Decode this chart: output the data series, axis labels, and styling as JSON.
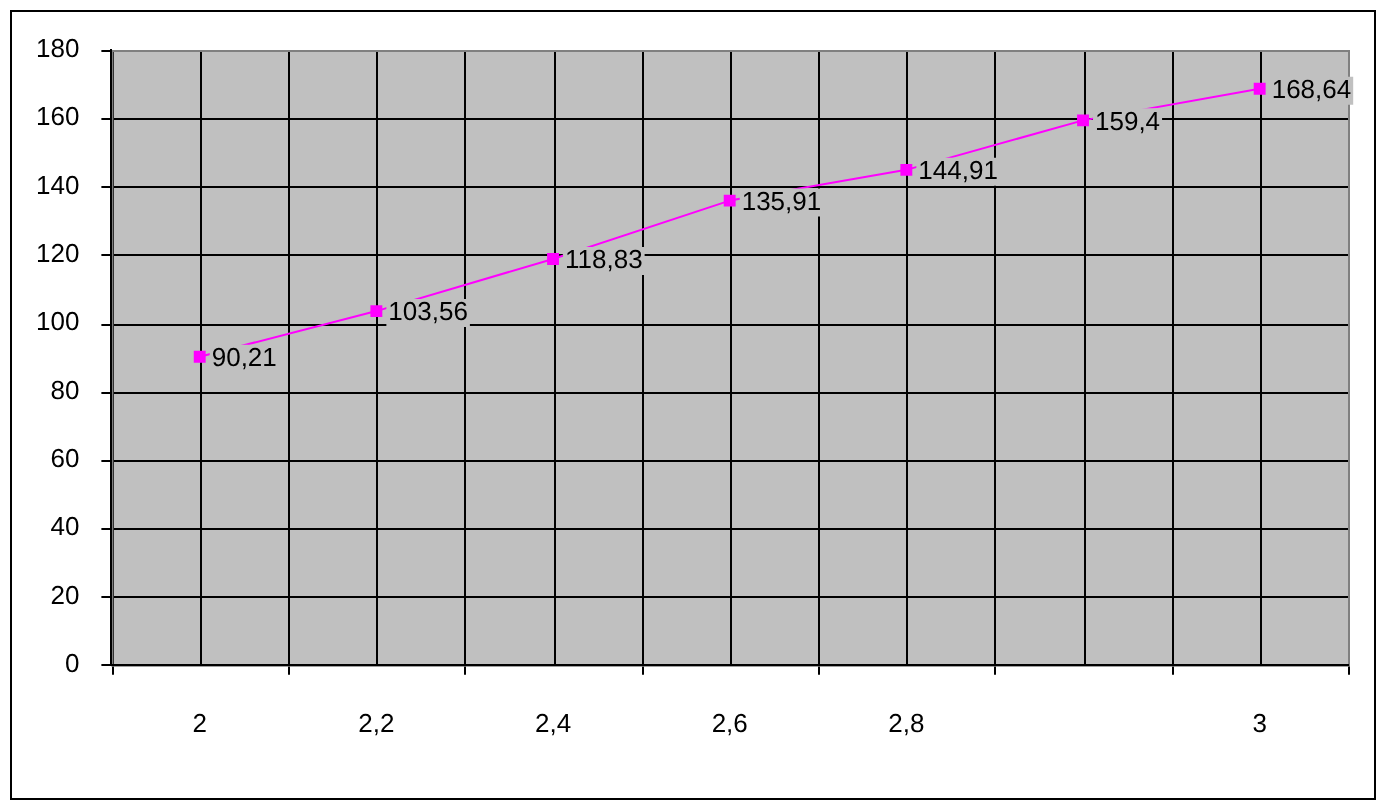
{
  "chart_data": {
    "type": "line",
    "categories": [
      "2",
      "2,2",
      "2,4",
      "2,6",
      "2,8",
      null,
      "3"
    ],
    "series": [
      {
        "color": "#ff00ff",
        "values": [
          90.21,
          103.56,
          118.83,
          135.91,
          144.91,
          159.4,
          168.64
        ],
        "value_labels": [
          "90,21",
          "103,56",
          "118,83",
          "135,91",
          "144,91",
          "159,4",
          "168,64"
        ]
      }
    ],
    "ylim": [
      0,
      180
    ],
    "yticks": [
      0,
      20,
      40,
      60,
      80,
      100,
      120,
      140,
      160,
      180
    ],
    "grid": true,
    "legend": false,
    "marker": "square",
    "line_style": "solid"
  }
}
